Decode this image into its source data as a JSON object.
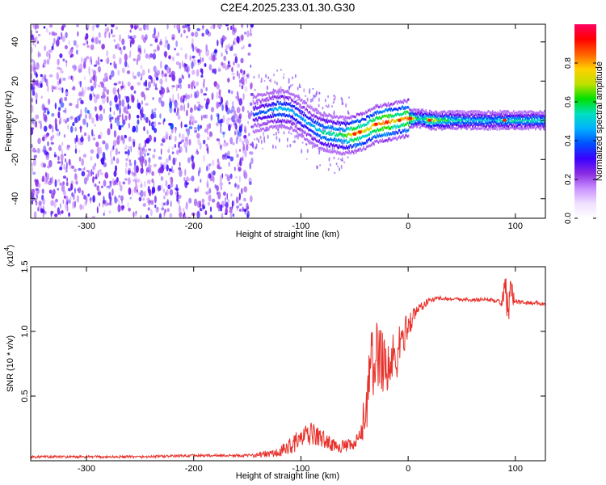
{
  "title": "C2E4.2025.233.01.30.G30",
  "colors": {
    "snr_line": "#e8322c",
    "spectrogram_scatter": "#8a2be2",
    "colormap": [
      "#ffffff",
      "#f0e0ff",
      "#c890ff",
      "#8a2be2",
      "#3a00ff",
      "#0050ff",
      "#00b0ff",
      "#00e0c0",
      "#00e000",
      "#c0e000",
      "#ffd000",
      "#ff6000",
      "#ff0000",
      "#ff0060"
    ]
  },
  "top_panel": {
    "xlabel": "Height of straight line (km)",
    "ylabel": "Frequency (Hz)",
    "xticks": [
      "-300",
      "-200",
      "-100",
      "0",
      "100"
    ],
    "yticks": [
      "40",
      "20",
      "0",
      "-20",
      "-40"
    ],
    "colorbar_label": "Normalized spectral amplitude",
    "colorbar_ticks": [
      "0.0",
      "0.2",
      "0.4",
      "0.6",
      "0.8"
    ]
  },
  "bottom_panel": {
    "xlabel": "Height of straight line (km)",
    "ylabel": "SNR (10 * v/v)",
    "multiplier_base": "(x10",
    "multiplier_exp": "4",
    "multiplier_close": ")",
    "xticks": [
      "-300",
      "-200",
      "0",
      "100",
      "-100"
    ],
    "yticks": [
      "1.5",
      "1.0",
      "0.5"
    ]
  },
  "chart_data": [
    {
      "type": "heatmap",
      "title": "C2E4.2025.233.01.30.G30",
      "xlabel": "Height of straight line (km)",
      "ylabel": "Frequency (Hz)",
      "xlim": [
        -352,
        128
      ],
      "ylim": [
        -50,
        49
      ],
      "zlabel": "Normalized spectral amplitude",
      "zlim": [
        0,
        1
      ],
      "ridge": {
        "x": [
          -145,
          -130,
          -120,
          -110,
          -100,
          -90,
          -80,
          -70,
          -60,
          -50,
          -40,
          -30,
          -20,
          -10,
          0,
          10,
          20,
          40,
          60,
          80,
          100,
          128
        ],
        "y": [
          3,
          5,
          6,
          5,
          1,
          -3,
          -6,
          -7,
          -8,
          -7,
          -5,
          -2,
          -1,
          0,
          1,
          1,
          0,
          0,
          0,
          0,
          0,
          0
        ],
        "amplitude": [
          0.35,
          0.4,
          0.5,
          0.45,
          0.42,
          0.45,
          0.55,
          0.55,
          0.6,
          0.8,
          0.7,
          0.8,
          0.85,
          0.7,
          0.85,
          0.5,
          0.7,
          0.55,
          0.5,
          0.5,
          0.55,
          0.5
        ]
      },
      "noise_region_x": [
        -352,
        -145
      ],
      "noise_amplitude": 0.15
    },
    {
      "type": "line",
      "title": "",
      "xlabel": "Height of straight line (km)",
      "ylabel": "SNR (10 * v/v)",
      "xlim": [
        -352,
        128
      ],
      "ylim": [
        0,
        1.5
      ],
      "y_multiplier": 10000,
      "x": [
        -352,
        -300,
        -250,
        -200,
        -150,
        -120,
        -110,
        -100,
        -90,
        -80,
        -70,
        -60,
        -50,
        -45,
        -40,
        -35,
        -30,
        -25,
        -20,
        -15,
        -10,
        -5,
        0,
        10,
        20,
        30,
        40,
        50,
        60,
        70,
        80,
        85,
        90,
        95,
        100,
        110,
        120,
        128
      ],
      "y": [
        0.03,
        0.03,
        0.03,
        0.04,
        0.04,
        0.06,
        0.12,
        0.17,
        0.21,
        0.17,
        0.12,
        0.11,
        0.12,
        0.18,
        0.38,
        0.7,
        0.8,
        0.85,
        0.7,
        0.75,
        0.82,
        0.95,
        1.05,
        1.18,
        1.24,
        1.26,
        1.25,
        1.25,
        1.24,
        1.25,
        1.24,
        1.23,
        1.25,
        1.28,
        1.23,
        1.22,
        1.22,
        1.21
      ],
      "noise_amplitude": [
        0.01,
        0.01,
        0.01,
        0.01,
        0.01,
        0.04,
        0.07,
        0.08,
        0.09,
        0.07,
        0.05,
        0.05,
        0.05,
        0.08,
        0.2,
        0.3,
        0.3,
        0.3,
        0.3,
        0.25,
        0.2,
        0.15,
        0.1,
        0.05,
        0.02,
        0.015,
        0.015,
        0.015,
        0.015,
        0.015,
        0.015,
        0.015,
        0.15,
        0.2,
        0.02,
        0.015,
        0.015,
        0.015
      ]
    }
  ]
}
